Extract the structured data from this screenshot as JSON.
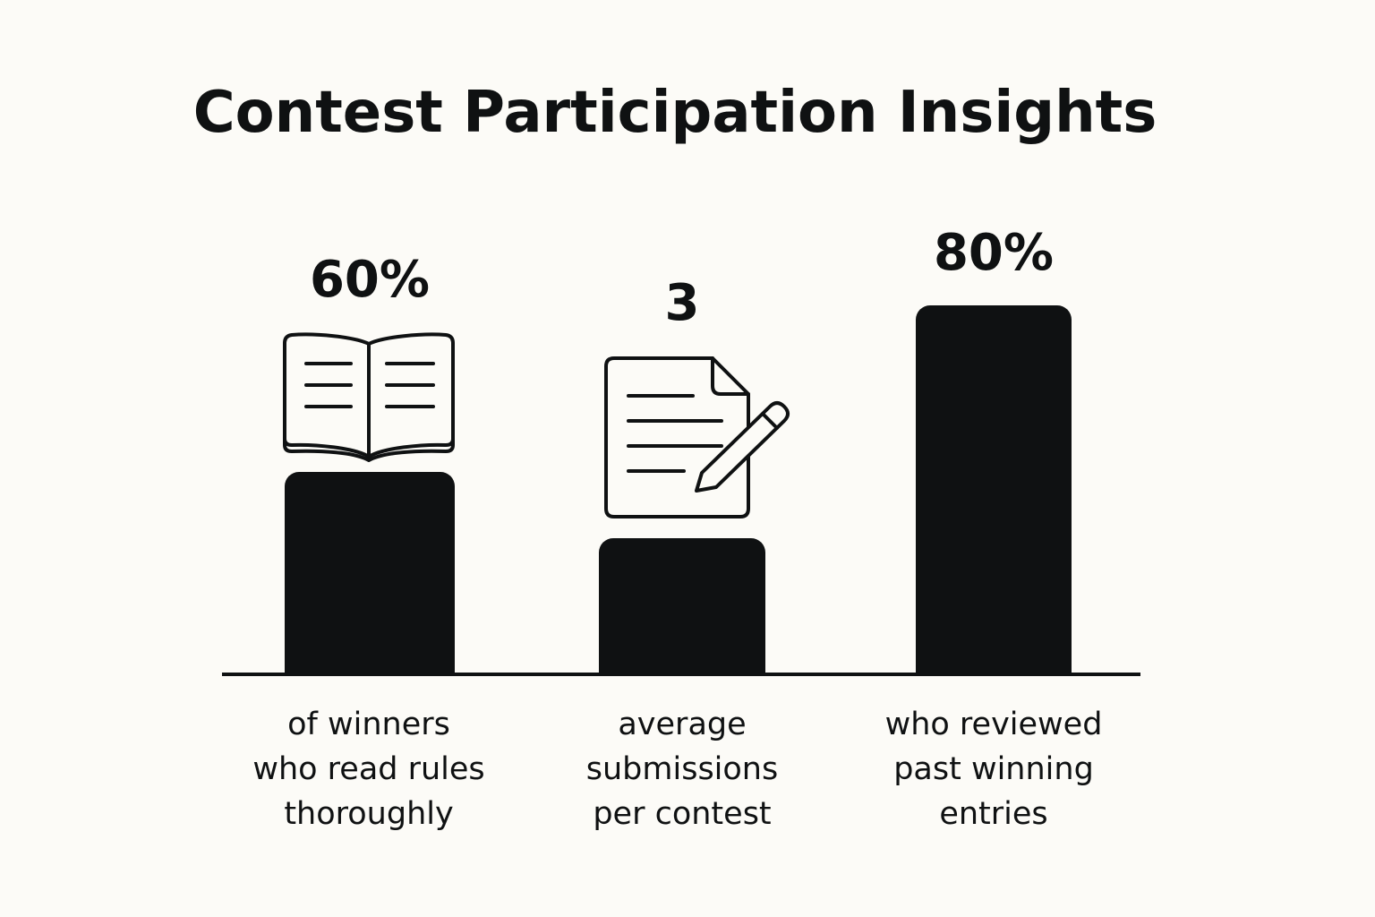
{
  "chart_data": {
    "type": "bar",
    "title": "Contest Participation Insights",
    "categories": [
      "of winners who read rules thoroughly",
      "average submissions per contest",
      "who reviewed past winning entries"
    ],
    "values": [
      60,
      3,
      80
    ],
    "value_labels": [
      "60%",
      "3",
      "80%"
    ],
    "caption_lines": [
      [
        "of winners",
        "who read rules",
        "thoroughly"
      ],
      [
        "average",
        "submissions",
        "per contest"
      ],
      [
        "who reviewed",
        "past winning",
        "entries"
      ]
    ],
    "icons": [
      "open-book-icon",
      "document-pencil-icon",
      null
    ],
    "grid": false,
    "legend": "none"
  },
  "colors": {
    "background": "#fcfbf7",
    "bar": "#0f1112",
    "text": "#0f1112"
  }
}
